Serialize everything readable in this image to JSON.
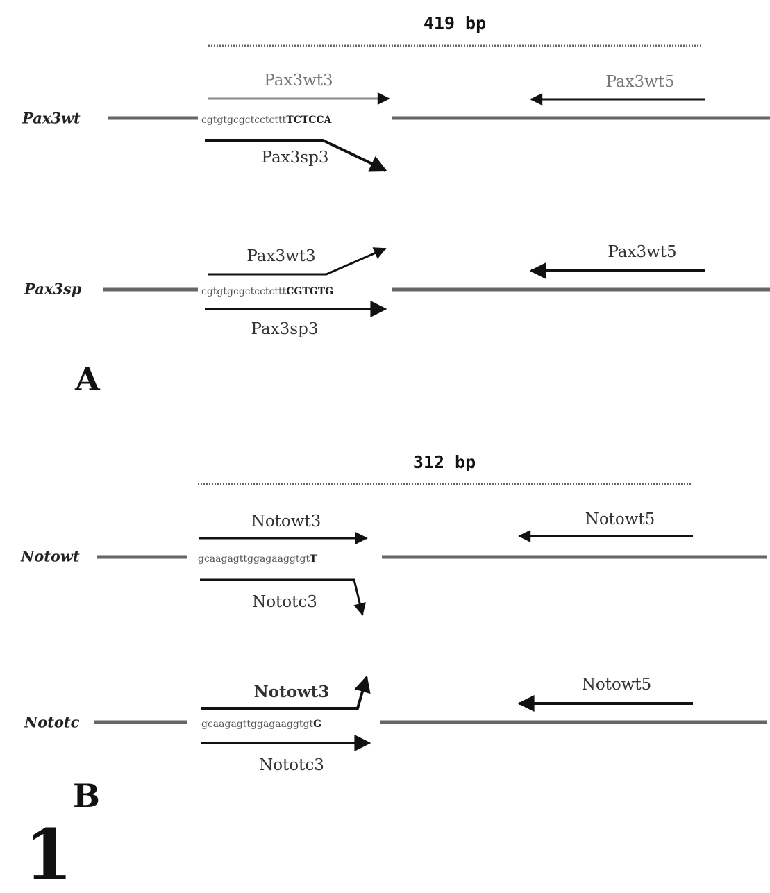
{
  "figure_number": "1",
  "panels": [
    {
      "label": "A",
      "size": "419 bp",
      "alleles": [
        {
          "gene": "Pax3wt",
          "sequence": {
            "lower": "cgtgtgcgctcctcttt",
            "upper": "TCTCCA"
          },
          "primers": {
            "top": "Pax3wt3",
            "right": "Pax3wt5",
            "bottom": "Pax3sp3"
          }
        },
        {
          "gene": "Pax3sp",
          "sequence": {
            "lower": "cgtgtgcgctcctcttt",
            "upper": "CGTGTG"
          },
          "primers": {
            "top": "Pax3wt3",
            "right": "Pax3wt5",
            "bottom": "Pax3sp3"
          }
        }
      ]
    },
    {
      "label": "B",
      "size": "312 bp",
      "alleles": [
        {
          "gene": "Notowt",
          "sequence": {
            "lower": "gcaagagttggagaaggtgt",
            "upper": "T"
          },
          "primers": {
            "top": "Notowt3",
            "right": "Notowt5",
            "bottom": "Nototc3"
          }
        },
        {
          "gene": "Nototc",
          "sequence": {
            "lower": "gcaagagttggagaaggtgt",
            "upper": "G"
          },
          "primers": {
            "top": "Notowt3",
            "right": "Notowt5",
            "bottom": "Nototc3"
          }
        }
      ]
    }
  ]
}
